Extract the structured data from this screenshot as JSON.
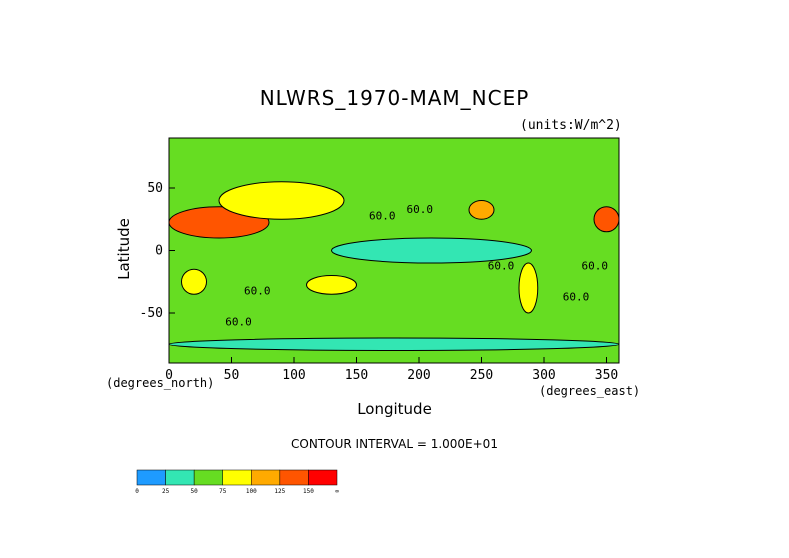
{
  "chart_data": {
    "type": "heatmap",
    "title": "NLWRS_1970-MAM_NCEP",
    "units_label": "(units:W/m^2)",
    "xlabel": "Longitude",
    "ylabel": "Latitude",
    "x_units_label": "(degrees_north)",
    "x_units_label_2": "(degrees_east)",
    "xlim": [
      0,
      360
    ],
    "ylim": [
      -90,
      90
    ],
    "x_ticks": [
      0,
      50,
      100,
      150,
      200,
      250,
      300,
      350
    ],
    "y_ticks": [
      -50,
      0,
      50
    ],
    "contour_interval_text": "CONTOUR INTERVAL = 1.000E+01",
    "contour_labels": [
      "60.0",
      "60.0",
      "60.0",
      "60.0",
      "60.0",
      "60.0",
      "60.0"
    ],
    "colorbar": {
      "levels": [
        "0",
        "25",
        "50",
        "75",
        "100",
        "125",
        "150",
        "∞"
      ],
      "colors": [
        "#1e9bff",
        "#33e6b3",
        "#66dd22",
        "#ffff00",
        "#ffaa00",
        "#ff5500",
        "#ff0000"
      ]
    },
    "regions": [
      {
        "lon": [
          0,
          360
        ],
        "lat": [
          -90,
          90
        ],
        "level": 2
      },
      {
        "lon": [
          130,
          290
        ],
        "lat": [
          -10,
          10
        ],
        "level": 1
      },
      {
        "lon": [
          0,
          80
        ],
        "lat": [
          10,
          35
        ],
        "level": 5
      },
      {
        "lon": [
          40,
          140
        ],
        "lat": [
          25,
          55
        ],
        "level": 3
      },
      {
        "lon": [
          110,
          150
        ],
        "lat": [
          -35,
          -20
        ],
        "level": 3
      },
      {
        "lon": [
          240,
          260
        ],
        "lat": [
          25,
          40
        ],
        "level": 4
      },
      {
        "lon": [
          340,
          360
        ],
        "lat": [
          15,
          35
        ],
        "level": 5
      },
      {
        "lon": [
          10,
          30
        ],
        "lat": [
          -35,
          -15
        ],
        "level": 3
      },
      {
        "lon": [
          280,
          295
        ],
        "lat": [
          -50,
          -10
        ],
        "level": 3
      },
      {
        "lon": [
          0,
          360
        ],
        "lat": [
          -80,
          -70
        ],
        "level": 1
      }
    ]
  }
}
